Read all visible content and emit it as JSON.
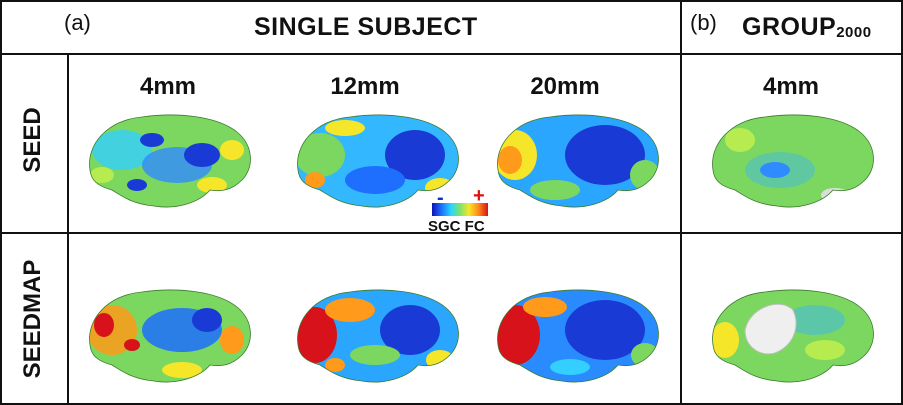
{
  "panels": {
    "a": {
      "letter": "(a)",
      "title": "SINGLE SUBJECT"
    },
    "b": {
      "letter": "(b)",
      "title_main": "GROUP",
      "title_sub": "2000"
    }
  },
  "columns": [
    "4mm",
    "12mm",
    "20mm"
  ],
  "group_column": "4mm",
  "rows": [
    "SEED",
    "SEEDMAP"
  ],
  "colorbar": {
    "minus": "-",
    "plus": "+",
    "label": "SGC FC",
    "colors": [
      "#0a14b4",
      "#1f6fff",
      "#27d6ff",
      "#7fe26a",
      "#f6e62a",
      "#ff8a1a",
      "#d7121a"
    ]
  },
  "colors": {
    "border": "#111111",
    "brain_base": "#7cd760"
  }
}
